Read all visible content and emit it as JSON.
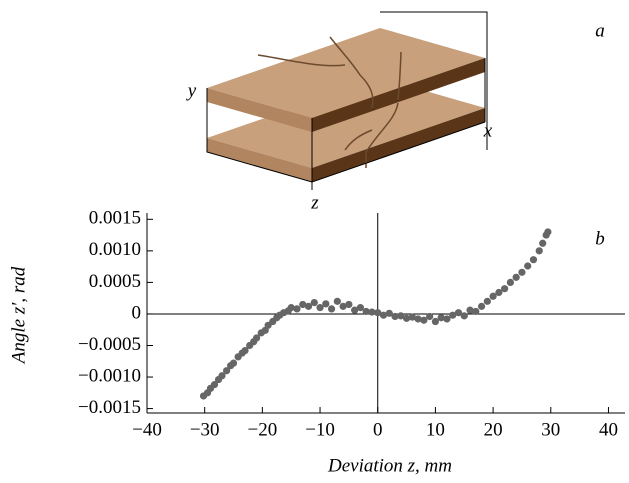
{
  "diagram": {
    "panel_label": "a",
    "axis_labels": [
      "y",
      "x",
      "z"
    ]
  },
  "chart_data": {
    "type": "scatter",
    "panel_label": "b",
    "xlabel": "Deviation z, mm",
    "ylabel": "Angle z′, rad",
    "color": "#666666",
    "x": [
      -30.2,
      -29.5,
      -29,
      -28.3,
      -27.6,
      -27,
      -26.2,
      -25.5,
      -25,
      -24.2,
      -23.5,
      -23,
      -22.2,
      -21.5,
      -21,
      -20.2,
      -19.5,
      -19,
      -18.2,
      -17.5,
      -17,
      -16.3,
      -15.5,
      -15,
      -14,
      -13,
      -12,
      -11,
      -10,
      -9,
      -8,
      -7,
      -6,
      -5,
      -4,
      -3,
      -2,
      -1,
      0,
      1,
      2,
      3,
      4,
      5,
      6,
      7,
      8,
      9,
      10,
      11,
      12,
      13,
      14,
      15,
      16,
      17,
      18,
      19,
      20,
      21,
      22,
      23,
      24,
      25,
      26,
      27,
      28,
      28.6,
      29.2,
      29.5
    ],
    "values": [
      -0.0013,
      -0.00125,
      -0.00118,
      -0.00112,
      -0.00104,
      -0.00098,
      -0.0009,
      -0.00082,
      -0.00078,
      -0.00068,
      -0.00062,
      -0.00058,
      -0.0005,
      -0.00044,
      -0.00038,
      -0.0003,
      -0.00026,
      -0.00018,
      -0.00012,
      -6e-05,
      -2e-05,
      2e-05,
      5e-05,
      0.0001,
      8e-05,
      0.00015,
      0.00012,
      0.00018,
      0.0001,
      0.00016,
      8e-05,
      0.0002,
      0.00012,
      0.00015,
      6e-05,
      0.0001,
      4e-05,
      3e-05,
      2e-05,
      -2e-05,
      1e-05,
      -4e-05,
      -3e-05,
      -7e-05,
      -5e-05,
      -8e-05,
      -0.0001,
      -4e-05,
      -0.00012,
      -6e-05,
      -8e-05,
      -2e-05,
      2e-05,
      -3e-05,
      6e-05,
      4e-05,
      0.00012,
      0.0002,
      0.00028,
      0.00034,
      0.0004,
      0.0005,
      0.00058,
      0.00066,
      0.00076,
      0.00086,
      0.001,
      0.00112,
      0.00125,
      0.0013
    ],
    "xlim": [
      -40,
      42
    ],
    "ylim": [
      -0.00157,
      0.0016
    ],
    "xticks": [
      {
        "value": -40,
        "label": "−40"
      },
      {
        "value": -30,
        "label": "−30"
      },
      {
        "value": -20,
        "label": "−20"
      },
      {
        "value": -10,
        "label": "−10"
      },
      0,
      10,
      20,
      30,
      40
    ],
    "yticks": [
      {
        "value": 0.0015,
        "label": "0.0015"
      },
      {
        "value": 0.001,
        "label": "0.0010"
      },
      {
        "value": 0.0005,
        "label": "0.0005"
      },
      0,
      {
        "value": -0.0005,
        "label": "−0.0005"
      },
      {
        "value": -0.001,
        "label": "−0.0010"
      },
      {
        "value": -0.0015,
        "label": "−0.0015"
      }
    ]
  }
}
